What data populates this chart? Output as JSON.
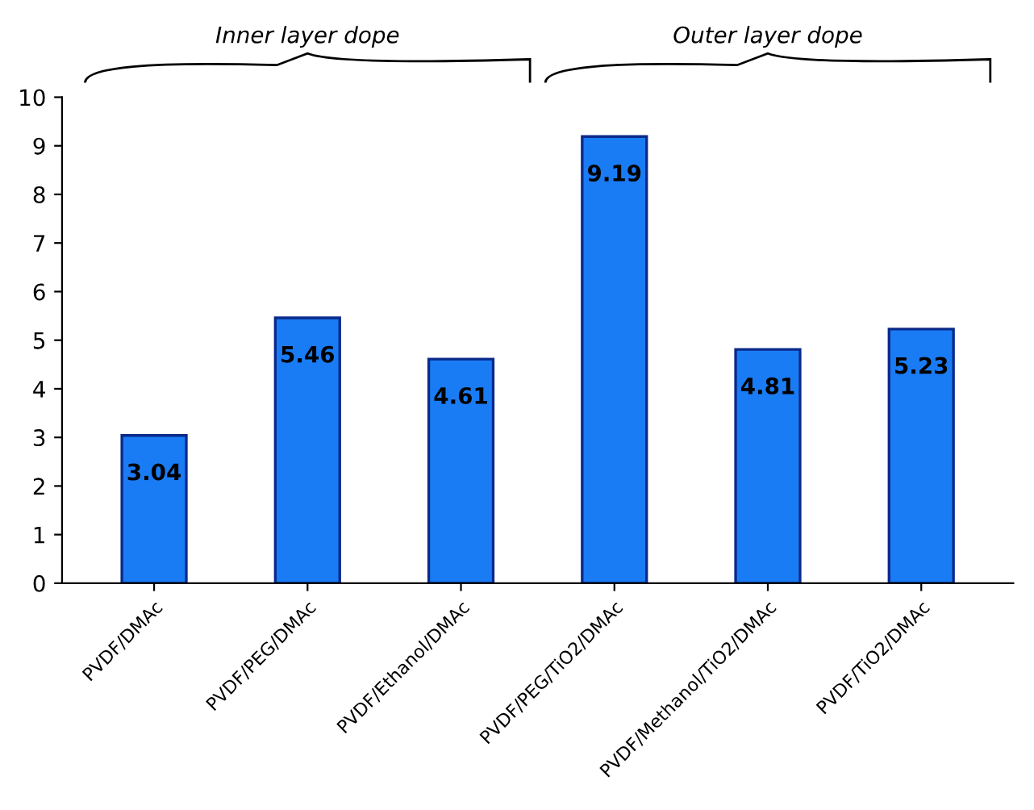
{
  "chart_data": {
    "type": "bar",
    "categories": [
      "PVDF/DMAc",
      "PVDF/PEG/DMAc",
      "PVDF/Ethanol/DMAc",
      "PVDF/PEG/TiO2/DMAc",
      "PVDF/Methanol/TiO2/DMAc",
      "PVDF/TiO2/DMAc"
    ],
    "values": [
      3.04,
      5.46,
      4.61,
      9.19,
      4.81,
      5.23
    ],
    "color": "#1a7cf5",
    "ylim": [
      0,
      10
    ],
    "yticks": [
      0,
      1,
      2,
      3,
      4,
      5,
      6,
      7,
      8,
      9,
      10
    ],
    "data_labels": true,
    "grid": false,
    "legend": false,
    "annotations": [
      "Inner layer dope",
      "Outer layer dope"
    ]
  }
}
